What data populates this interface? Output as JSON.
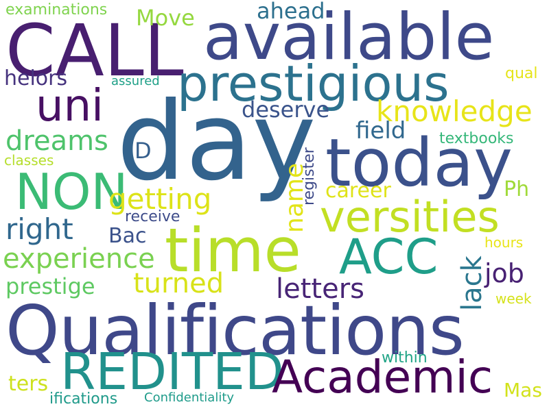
{
  "words": [
    {
      "text": "day",
      "color": "#33638d"
    },
    {
      "text": "Qualifications",
      "color": "#3f4889"
    },
    {
      "text": "available",
      "color": "#3e4989"
    },
    {
      "text": "CALL",
      "color": "#481f70"
    },
    {
      "text": "today",
      "color": "#3b518b"
    },
    {
      "text": "prestigious",
      "color": "#2c728e"
    },
    {
      "text": "time",
      "color": "#b8de29"
    },
    {
      "text": "REDITED",
      "color": "#21918c"
    },
    {
      "text": "Academic",
      "color": "#440154"
    },
    {
      "text": "versities",
      "color": "#c2df23"
    },
    {
      "text": "NON",
      "color": "#3bbb75"
    },
    {
      "text": "uni",
      "color": "#471063"
    },
    {
      "text": "ACC",
      "color": "#1f9e89"
    },
    {
      "text": "knowledge",
      "color": "#e7e419"
    },
    {
      "text": "experience",
      "color": "#7ad151"
    },
    {
      "text": "getting",
      "color": "#dde318"
    },
    {
      "text": "dreams",
      "color": "#4ec36b"
    },
    {
      "text": "right",
      "color": "#30678d"
    },
    {
      "text": "turned",
      "color": "#d8e219"
    },
    {
      "text": "letters",
      "color": "#482576"
    },
    {
      "text": "name",
      "color": "#e2e418"
    },
    {
      "text": "lack",
      "color": "#2a768e"
    },
    {
      "text": "job",
      "color": "#482173"
    },
    {
      "text": "prestige",
      "color": "#5ec962"
    },
    {
      "text": "field",
      "color": "#31688e"
    },
    {
      "text": "deserve",
      "color": "#3a538b"
    },
    {
      "text": "career",
      "color": "#dfe318"
    },
    {
      "text": "Move",
      "color": "#95d840"
    },
    {
      "text": "ahead",
      "color": "#2d708e"
    },
    {
      "text": "helors",
      "color": "#46337e"
    },
    {
      "text": "Bac",
      "color": "#3b528b"
    },
    {
      "text": "D",
      "color": "#355f8d"
    },
    {
      "text": "Ph",
      "color": "#a0da39"
    },
    {
      "text": "Mas",
      "color": "#d2e21b"
    },
    {
      "text": "ters",
      "color": "#cde11d"
    },
    {
      "text": "examinations",
      "color": "#7fd34e"
    },
    {
      "text": "register",
      "color": "#3e4a89"
    },
    {
      "text": "receive",
      "color": "#3e4c8a"
    },
    {
      "text": "textbooks",
      "color": "#35b779"
    },
    {
      "text": "classes",
      "color": "#b5de2b"
    },
    {
      "text": "qual",
      "color": "#e5e419"
    },
    {
      "text": "hours",
      "color": "#e8e419"
    },
    {
      "text": "week",
      "color": "#d5e21a"
    },
    {
      "text": "within",
      "color": "#20a486"
    },
    {
      "text": "assured",
      "color": "#1fa088"
    },
    {
      "text": "ifications",
      "color": "#1f9a8a"
    },
    {
      "text": "Confidentiality",
      "color": "#1e9b8a"
    }
  ]
}
